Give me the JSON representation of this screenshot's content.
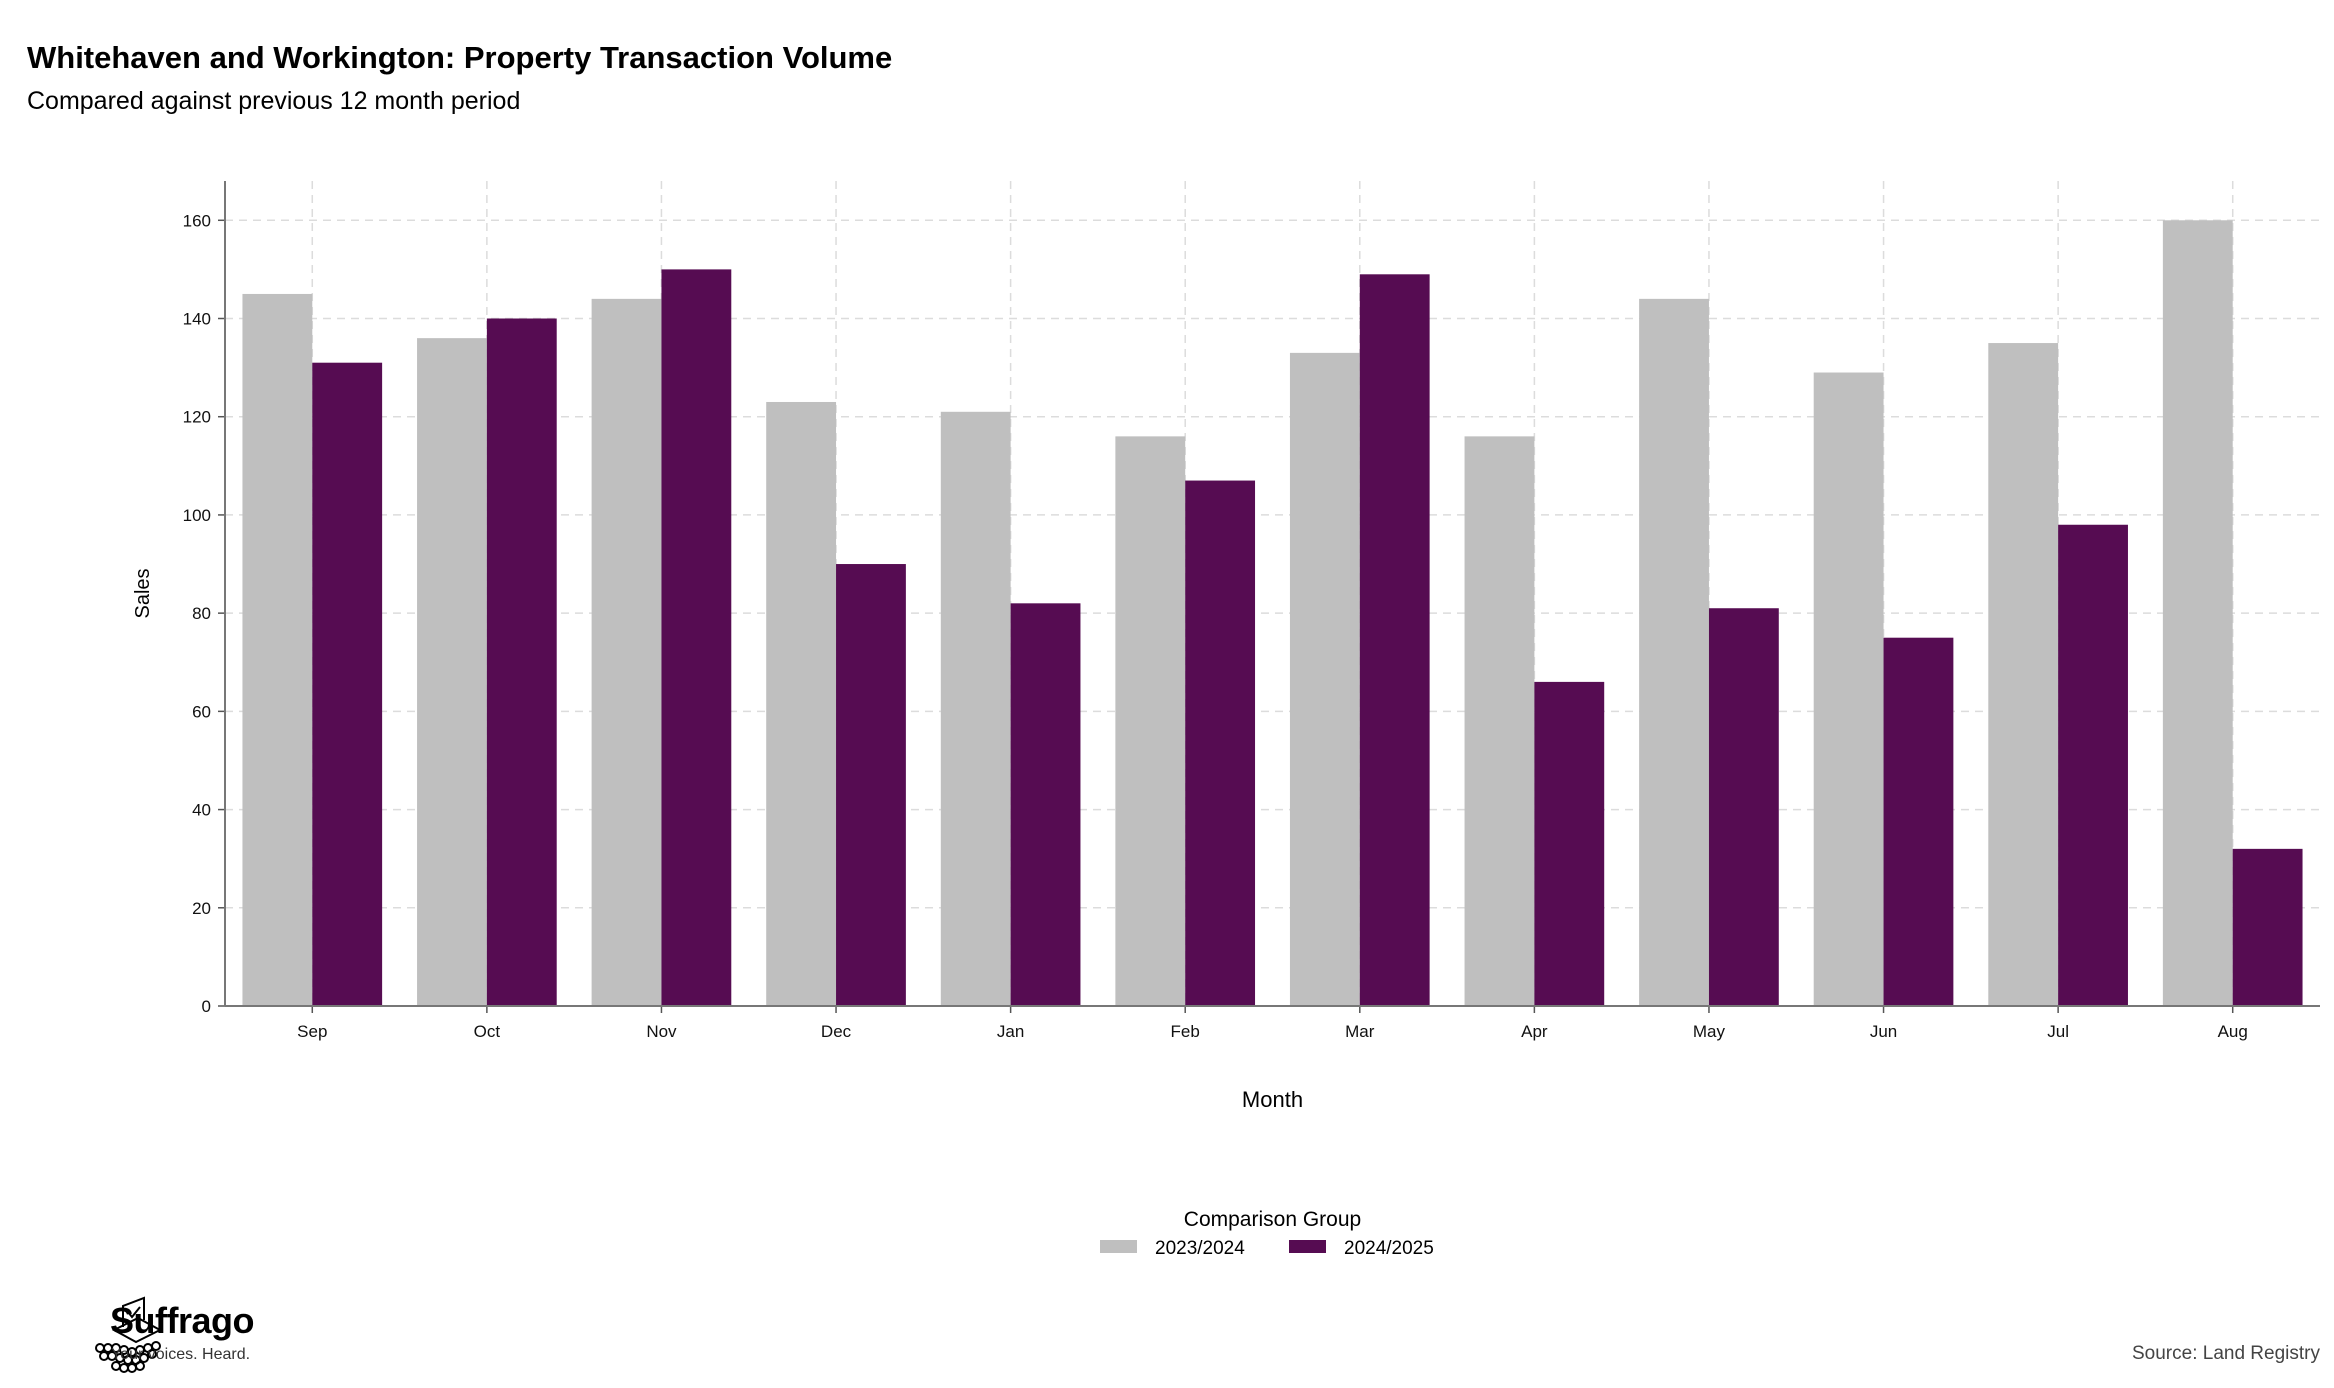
{
  "header": {
    "title": "Whitehaven and Workington: Property Transaction Volume",
    "subtitle": "Compared against previous 12 month period"
  },
  "footer": {
    "brand": "Suffrago",
    "tagline": "Your voices. Heard.",
    "source": "Source: Land Registry"
  },
  "chart_data": {
    "type": "bar",
    "title": "Whitehaven and Workington: Property Transaction Volume",
    "subtitle": "Compared against previous 12 month period",
    "xlabel": "Month",
    "ylabel": "Sales",
    "categories": [
      "Sep",
      "Oct",
      "Nov",
      "Dec",
      "Jan",
      "Feb",
      "Mar",
      "Apr",
      "May",
      "Jun",
      "Jul",
      "Aug"
    ],
    "series": [
      {
        "name": "2023/2024",
        "color": "#bfbfbf",
        "values": [
          145,
          136,
          144,
          123,
          121,
          116,
          133,
          116,
          144,
          129,
          135,
          160
        ]
      },
      {
        "name": "2024/2025",
        "color": "#560c52",
        "values": [
          131,
          140,
          150,
          90,
          82,
          107,
          149,
          66,
          81,
          75,
          98,
          32
        ]
      }
    ],
    "ylim": [
      0,
      168
    ],
    "yticks": [
      0,
      20,
      40,
      60,
      80,
      100,
      120,
      140,
      160
    ],
    "grid": true,
    "legend_title": "Comparison Group",
    "legend_position": "bottom"
  }
}
